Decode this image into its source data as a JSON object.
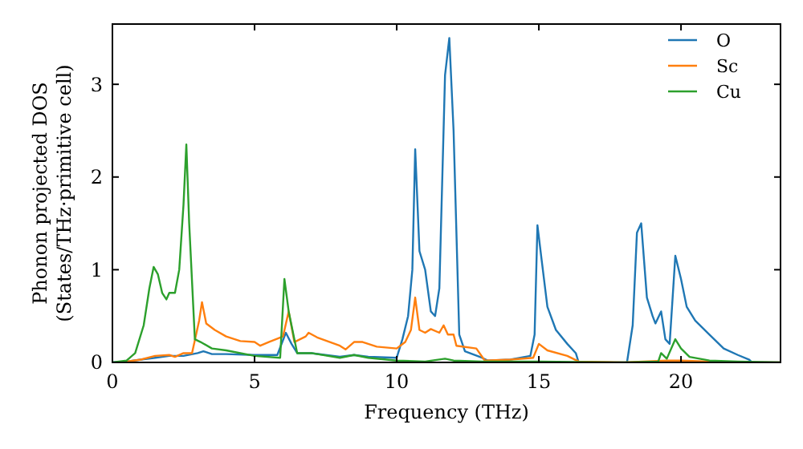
{
  "chart_data": {
    "type": "line",
    "xlabel": "Frequency (THz)",
    "ylabel": "Phonon projected DOS\n(States/THz·primitive cell)",
    "xlim": [
      0,
      23.5
    ],
    "ylim": [
      0,
      3.65
    ],
    "xticks": [
      0,
      5,
      10,
      15,
      20
    ],
    "yticks": [
      0,
      1,
      2,
      3
    ],
    "grid": false,
    "legend": "top right",
    "marker": "none",
    "line_style": "solid",
    "series": [
      {
        "name": "O",
        "color": "#1f77b4",
        "x": [
          0,
          0.5,
          1,
          1.5,
          2,
          2.5,
          3,
          3.2,
          3.5,
          4,
          5,
          5.8,
          6.1,
          6.3,
          6.5,
          7,
          8,
          8.5,
          9,
          10,
          10.2,
          10.4,
          10.55,
          10.65,
          10.8,
          11,
          11.2,
          11.35,
          11.5,
          11.7,
          11.85,
          12,
          12.2,
          12.4,
          13,
          13.2,
          14,
          14.7,
          14.85,
          14.95,
          15.1,
          15.3,
          15.6,
          16,
          16.3,
          16.4,
          18.1,
          18.3,
          18.45,
          18.6,
          18.8,
          19,
          19.1,
          19.3,
          19.45,
          19.6,
          19.8,
          20,
          20.2,
          20.5,
          21,
          21.5,
          22,
          22.4,
          22.5,
          23.5
        ],
        "values": [
          0,
          0.01,
          0.03,
          0.05,
          0.07,
          0.07,
          0.1,
          0.12,
          0.09,
          0.09,
          0.08,
          0.08,
          0.32,
          0.2,
          0.1,
          0.1,
          0.06,
          0.08,
          0.06,
          0.05,
          0.25,
          0.5,
          1.0,
          2.3,
          1.2,
          1.0,
          0.55,
          0.5,
          0.8,
          3.1,
          3.5,
          2.5,
          0.3,
          0.12,
          0.05,
          0.02,
          0.03,
          0.07,
          0.3,
          1.48,
          1.1,
          0.6,
          0.35,
          0.2,
          0.1,
          0,
          0,
          0.4,
          1.4,
          1.5,
          0.7,
          0.5,
          0.42,
          0.55,
          0.25,
          0.2,
          1.15,
          0.9,
          0.6,
          0.45,
          0.3,
          0.15,
          0.08,
          0.03,
          0,
          0
        ]
      },
      {
        "name": "Sc",
        "color": "#ff7f0e",
        "x": [
          0.3,
          1,
          1.5,
          2,
          2.2,
          2.5,
          2.8,
          3.05,
          3.15,
          3.3,
          3.6,
          4,
          4.5,
          5,
          5.2,
          5.5,
          6,
          6.2,
          6.4,
          6.8,
          6.9,
          7.2,
          8,
          8.2,
          8.5,
          8.8,
          9.3,
          10,
          10.3,
          10.5,
          10.65,
          10.8,
          11,
          11.2,
          11.5,
          11.65,
          11.8,
          12,
          12.1,
          12.8,
          13.1,
          14,
          14.8,
          15,
          15.3,
          16,
          16.4,
          18,
          19.5,
          20,
          21,
          22,
          23.5
        ],
        "values": [
          0,
          0.03,
          0.07,
          0.08,
          0.06,
          0.1,
          0.1,
          0.45,
          0.65,
          0.42,
          0.35,
          0.28,
          0.23,
          0.22,
          0.18,
          0.22,
          0.28,
          0.55,
          0.22,
          0.28,
          0.32,
          0.27,
          0.18,
          0.14,
          0.22,
          0.22,
          0.17,
          0.15,
          0.22,
          0.35,
          0.7,
          0.35,
          0.32,
          0.36,
          0.32,
          0.4,
          0.3,
          0.3,
          0.18,
          0.15,
          0.02,
          0.03,
          0.05,
          0.2,
          0.13,
          0.07,
          0.01,
          0,
          0.02,
          0.02,
          0.01,
          0,
          0
        ]
      },
      {
        "name": "Cu",
        "color": "#2ca02c",
        "x": [
          0,
          0.5,
          0.8,
          1.1,
          1.3,
          1.45,
          1.6,
          1.75,
          1.9,
          2.0,
          2.2,
          2.35,
          2.5,
          2.6,
          2.7,
          2.9,
          3.1,
          3.5,
          4,
          5,
          5.9,
          6.05,
          6.2,
          6.5,
          7,
          8,
          8.5,
          9,
          10,
          11,
          11.7,
          12,
          13,
          14,
          15,
          18,
          19.2,
          19.3,
          19.5,
          19.8,
          20,
          20.3,
          21,
          22,
          23.5
        ],
        "values": [
          0,
          0.02,
          0.1,
          0.4,
          0.8,
          1.03,
          0.95,
          0.75,
          0.68,
          0.75,
          0.75,
          1.0,
          1.7,
          2.35,
          1.5,
          0.25,
          0.22,
          0.15,
          0.13,
          0.07,
          0.05,
          0.9,
          0.55,
          0.1,
          0.1,
          0.05,
          0.08,
          0.05,
          0.02,
          0.01,
          0.04,
          0.02,
          0.01,
          0.01,
          0.01,
          0,
          0.01,
          0.1,
          0.04,
          0.25,
          0.15,
          0.06,
          0.02,
          0.01,
          0
        ]
      }
    ]
  }
}
